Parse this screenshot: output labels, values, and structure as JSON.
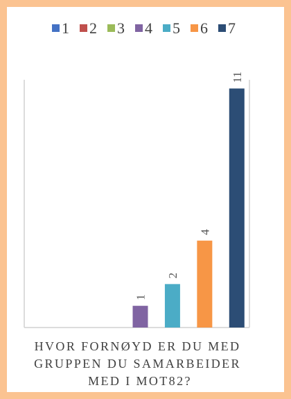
{
  "chart_data": {
    "type": "bar",
    "title": "",
    "xlabel": "HVOR FORNØYD ER DU MED GRUPPEN DU SAMARBEIDER MED I MOT82?",
    "xlabel_lines": [
      "HVOR FORNØYD ER DU MED",
      "GRUPPEN DU SAMARBEIDER",
      "MED I MOT82?"
    ],
    "ylabel": "",
    "categories": [
      "1",
      "2",
      "3",
      "4",
      "5",
      "6",
      "7"
    ],
    "values": [
      0,
      0,
      0,
      1,
      2,
      4,
      11
    ],
    "data_labels": [
      "",
      "",
      "",
      "1",
      "2",
      "4",
      "11"
    ],
    "colors": [
      "#4472c4",
      "#c0504d",
      "#9bbb59",
      "#8064a2",
      "#4bacc6",
      "#f79646",
      "#2c4d75"
    ],
    "ylim": [
      0,
      11.4
    ],
    "grid": false,
    "legend_position": "top",
    "legend": [
      "1",
      "2",
      "3",
      "4",
      "5",
      "6",
      "7"
    ]
  }
}
